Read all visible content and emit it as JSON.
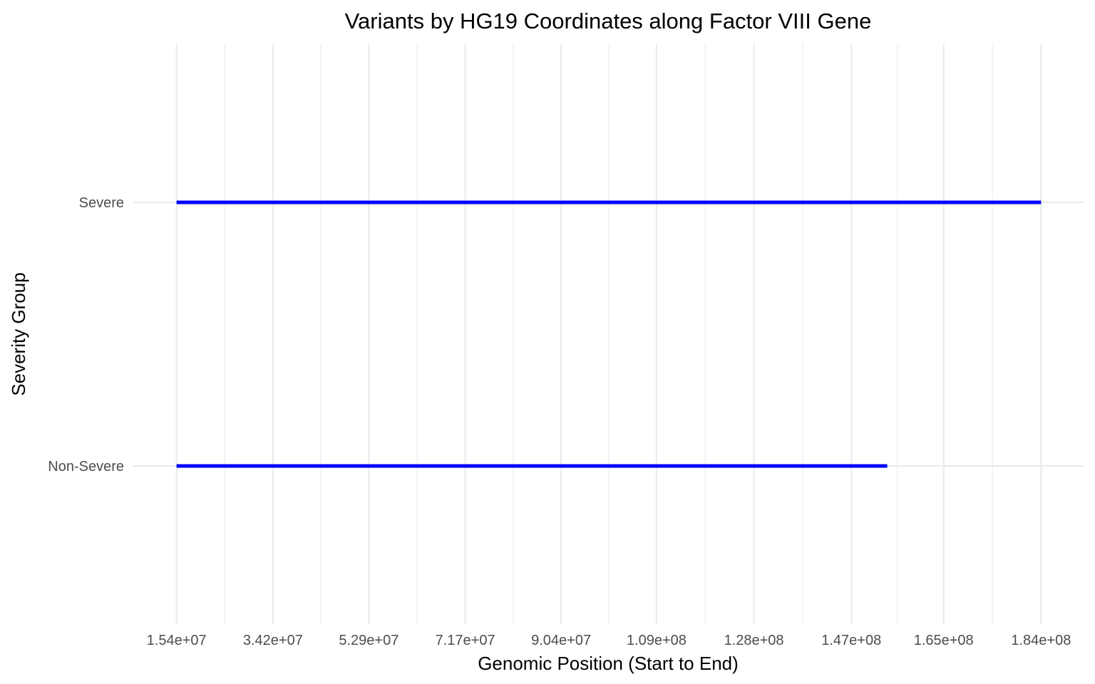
{
  "chart_data": {
    "type": "segment",
    "title": "Variants by HG19 Coordinates along Factor VIII Gene",
    "xlabel": "Genomic Position (Start to End)",
    "ylabel": "Severity Group",
    "x_ticks": [
      15400000,
      34200000,
      52900000,
      71700000,
      90400000,
      109000000,
      128000000,
      147000000,
      165000000,
      184000000
    ],
    "x_tick_labels": [
      "1.54e+07",
      "3.42e+07",
      "5.29e+07",
      "7.17e+07",
      "9.04e+07",
      "1.09e+08",
      "1.28e+08",
      "1.47e+08",
      "1.65e+08",
      "1.84e+08"
    ],
    "xlim": [
      6970000,
      192430000
    ],
    "categories": [
      "Non-Severe",
      "Severe"
    ],
    "segments": [
      {
        "category": "Severe",
        "start": 15400000,
        "end": 184000000
      },
      {
        "category": "Non-Severe",
        "start": 15400000,
        "end": 154000000
      }
    ],
    "color": "#0000ff",
    "grid": true,
    "legend": "none"
  }
}
